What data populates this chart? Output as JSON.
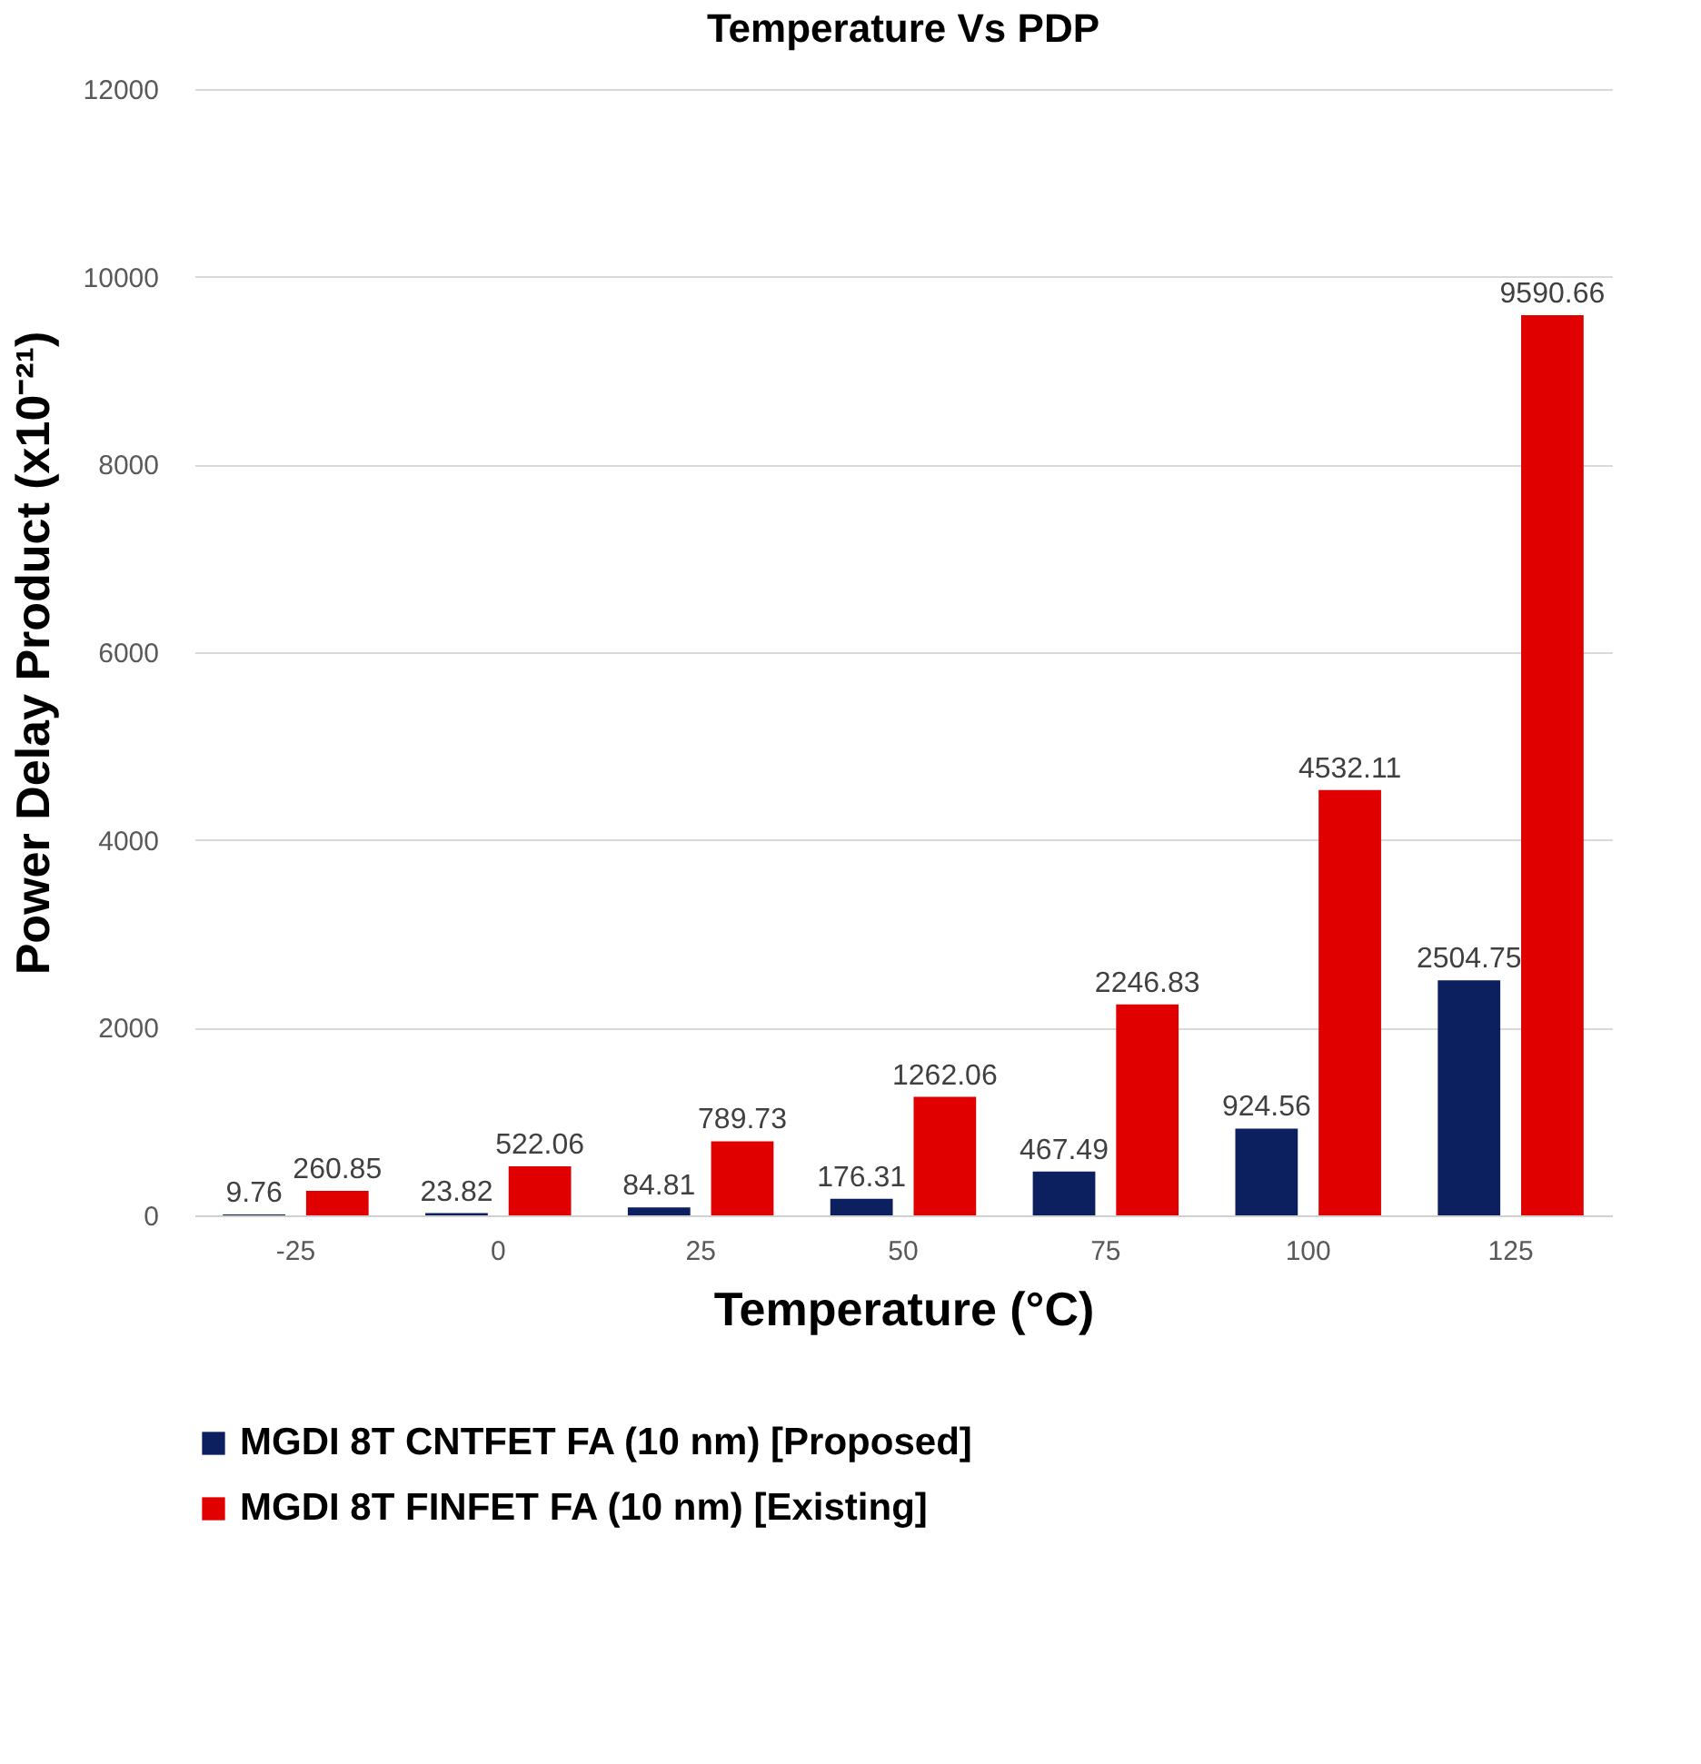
{
  "chart_data": {
    "type": "bar",
    "title": "Temperature Vs PDP",
    "xlabel": "Temperature (°C)",
    "ylabel": "Power Delay Product (x10⁻²¹)",
    "categories": [
      "-25",
      "0",
      "25",
      "50",
      "75",
      "100",
      "125"
    ],
    "series": [
      {
        "name": "MGDI 8T CNTFET FA (10 nm) [Proposed]",
        "color": "#0c1f5e",
        "values": [
          9.76,
          23.82,
          84.81,
          176.31,
          467.49,
          924.56,
          2504.75
        ]
      },
      {
        "name": "MGDI 8T FINFET FA (10 nm) [Existing]",
        "color": "#e00000",
        "values": [
          260.85,
          522.06,
          789.73,
          1262.06,
          2246.83,
          4532.11,
          9590.66
        ]
      }
    ],
    "ylim": [
      0,
      12000
    ],
    "yticks": [
      0,
      2000,
      4000,
      6000,
      8000,
      10000,
      12000
    ],
    "grid": "y",
    "legend": "bottom",
    "data_labels": true
  }
}
